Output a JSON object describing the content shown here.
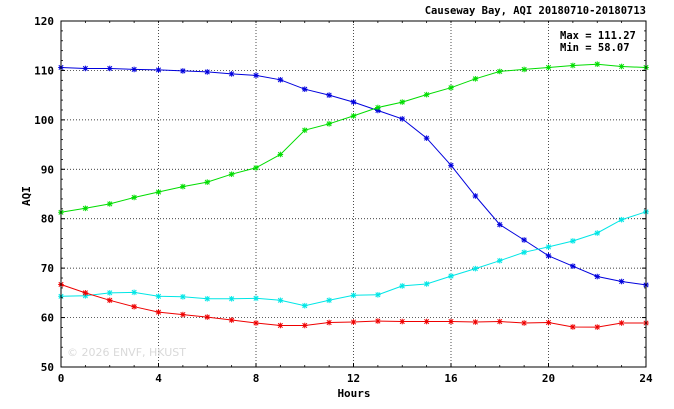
{
  "chart_data": {
    "type": "line",
    "title": "Causeway Bay, AQI 20180710-20180713",
    "xlabel": "Hours",
    "ylabel": "AQI",
    "xlim": [
      0,
      24
    ],
    "ylim": [
      50,
      120
    ],
    "xticks": [
      "0",
      "4",
      "8",
      "12",
      "16",
      "20",
      "24"
    ],
    "yticks": [
      "50",
      "60",
      "70",
      "80",
      "90",
      "100",
      "110",
      "120"
    ],
    "grid": true,
    "stats": {
      "max": "Max = 111.27",
      "min": "Min =  58.07"
    },
    "watermark": "© 2026 ENVF, HKUST",
    "x": [
      0,
      1,
      2,
      3,
      4,
      5,
      6,
      7,
      8,
      9,
      10,
      11,
      12,
      13,
      14,
      15,
      16,
      17,
      18,
      19,
      20,
      21,
      22,
      23,
      24
    ],
    "series": [
      {
        "color": "#0000dd",
        "values": [
          110.6,
          110.4,
          110.4,
          110.2,
          110.1,
          109.9,
          109.7,
          109.3,
          109.0,
          108.1,
          106.2,
          105.0,
          103.6,
          101.9,
          100.2,
          96.3,
          90.8,
          84.6,
          78.8,
          75.7,
          72.5,
          70.4,
          68.3,
          67.3,
          66.6
        ]
      },
      {
        "color": "#00dd00",
        "values": [
          81.3,
          82.1,
          83.0,
          84.3,
          85.4,
          86.5,
          87.4,
          89.0,
          90.3,
          93.0,
          97.9,
          99.2,
          100.8,
          102.5,
          103.6,
          105.1,
          106.5,
          108.3,
          109.8,
          110.2,
          110.6,
          111.0,
          111.27,
          110.8,
          110.6
        ]
      },
      {
        "color": "#00e6e6",
        "values": [
          64.3,
          64.4,
          65.0,
          65.1,
          64.3,
          64.2,
          63.8,
          63.8,
          63.9,
          63.5,
          62.4,
          63.5,
          64.5,
          64.6,
          66.4,
          66.8,
          68.4,
          69.9,
          71.5,
          73.2,
          74.3,
          75.5,
          77.1,
          79.8,
          81.4
        ]
      },
      {
        "color": "#ee0000",
        "values": [
          66.7,
          65.0,
          63.5,
          62.2,
          61.1,
          60.6,
          60.1,
          59.5,
          58.9,
          58.4,
          58.4,
          59.0,
          59.1,
          59.3,
          59.2,
          59.2,
          59.2,
          59.1,
          59.2,
          58.9,
          59.0,
          58.1,
          58.07,
          58.9,
          58.9
        ]
      }
    ]
  }
}
